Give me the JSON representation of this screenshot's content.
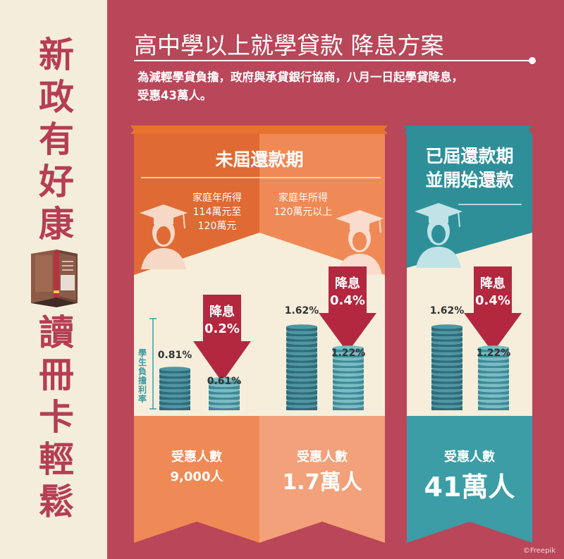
{
  "side": {
    "title_top": [
      "新",
      "政",
      "有",
      "好",
      "康"
    ],
    "title_bottom": [
      "讀",
      "冊",
      "卡",
      "輕",
      "鬆"
    ]
  },
  "header": {
    "title": "高中學以上就學貸款 降息方案",
    "subtitle_line1": "為減輕學貸負擔，政府與承貸銀行協商，八月一日起學貸降息，",
    "subtitle_line2": "受惠43萬人。"
  },
  "colors": {
    "background": "#ba4659",
    "left_panel": "#f4eddc",
    "orange_dark": "#e06a33",
    "orange_light": "#ef8a56",
    "teal": "#3a9ba6",
    "cream": "#f6eedb",
    "arrow": "#b3283f"
  },
  "labels": {
    "interest_axis": "學生負擔利率"
  },
  "group_unpaid": {
    "heading": "未屆還款期",
    "columns": [
      {
        "income": [
          "家庭年所得",
          "114萬元至",
          "120萬元"
        ],
        "rate_before": "0.81%",
        "rate_after": "0.61%",
        "arrow_label": [
          "降息",
          "0.2%"
        ],
        "beneficiary_label": "受惠人數",
        "beneficiary_count": "9,000人"
      },
      {
        "income": [
          "家庭年所得",
          "120萬元以上"
        ],
        "rate_before": "1.62%",
        "rate_after": "1.22%",
        "arrow_label": [
          "降息",
          "0.4%"
        ],
        "beneficiary_label": "受惠人數",
        "beneficiary_count": "1.7萬人"
      }
    ]
  },
  "group_repaying": {
    "heading": [
      "已屆還款期",
      "並開始還款"
    ],
    "rate_before": "1.62%",
    "rate_after": "1.22%",
    "arrow_label": [
      "降息",
      "0.4%"
    ],
    "beneficiary_label": "受惠人數",
    "beneficiary_count": "41萬人"
  },
  "credit": "©Freepik"
}
